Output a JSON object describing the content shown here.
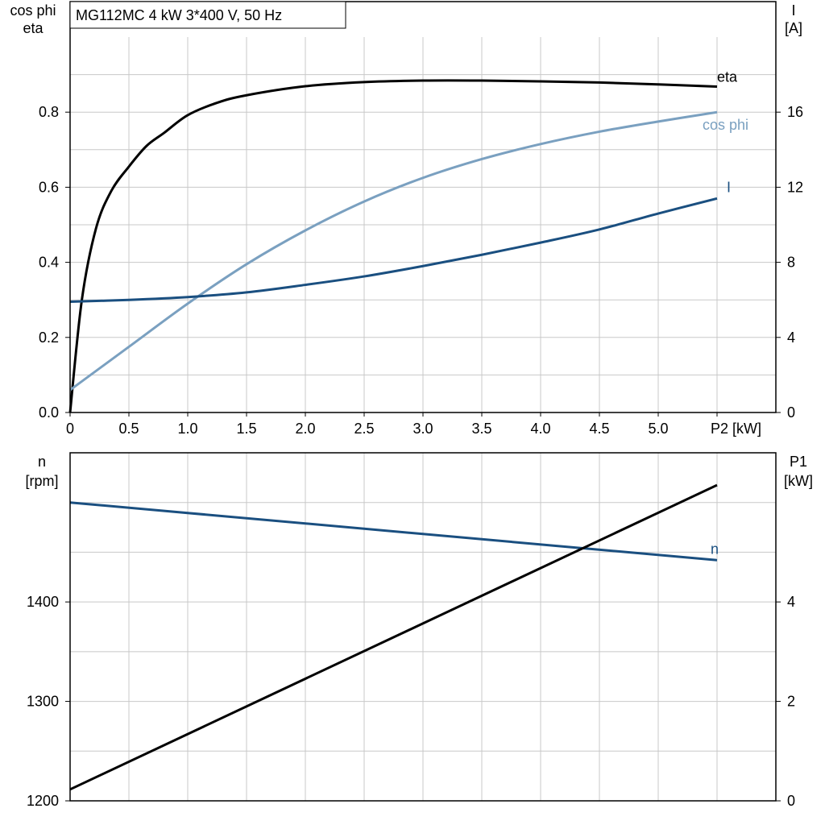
{
  "title_box": "MG112MC   4 kW   3*400 V, 50 Hz",
  "chart_data": [
    {
      "type": "line",
      "title": "MG112MC   4 kW   3*400 V, 50 Hz",
      "xlabel": "P2 [kW]",
      "xlim": [
        0,
        6
      ],
      "x_ticks": [
        "0",
        "0.5",
        "1.0",
        "1.5",
        "2.0",
        "2.5",
        "3.0",
        "3.5",
        "4.0",
        "4.5",
        "5.0",
        "P2 [kW]"
      ],
      "ylabel_left": [
        "cos phi",
        "eta"
      ],
      "ylim_left": [
        0,
        1.0
      ],
      "y_ticks_left": [
        "0.0",
        "0.2",
        "0.4",
        "0.6",
        "0.8"
      ],
      "ylabel_right": [
        "I",
        "[A]"
      ],
      "ylim_right": [
        0,
        20
      ],
      "y_ticks_right": [
        "0",
        "4",
        "8",
        "12",
        "16"
      ],
      "grid": true,
      "series": [
        {
          "name": "eta",
          "axis": "left",
          "color": "#000000",
          "x": [
            0,
            0.1,
            0.22,
            0.35,
            0.5,
            0.65,
            0.8,
            1.0,
            1.25,
            1.5,
            2.0,
            2.5,
            3.0,
            3.5,
            4.0,
            4.5,
            5.0,
            5.5
          ],
          "y": [
            0,
            0.3,
            0.49,
            0.59,
            0.655,
            0.71,
            0.745,
            0.792,
            0.825,
            0.845,
            0.869,
            0.88,
            0.884,
            0.884,
            0.882,
            0.879,
            0.874,
            0.868
          ]
        },
        {
          "name": "cos phi",
          "axis": "left",
          "color": "#7aa0c0",
          "x": [
            0,
            0.5,
            1.0,
            1.5,
            2.0,
            2.5,
            3.0,
            3.5,
            4.0,
            4.5,
            5.0,
            5.5
          ],
          "y": [
            0.06,
            0.175,
            0.29,
            0.395,
            0.485,
            0.562,
            0.625,
            0.675,
            0.715,
            0.748,
            0.775,
            0.8
          ]
        },
        {
          "name": "I",
          "axis": "right",
          "color": "#1a4f80",
          "x": [
            0,
            0.5,
            1.0,
            1.5,
            2.0,
            2.5,
            3.0,
            3.5,
            4.0,
            4.5,
            5.0,
            5.5
          ],
          "y": [
            5.9,
            6.0,
            6.15,
            6.4,
            6.8,
            7.25,
            7.8,
            8.4,
            9.05,
            9.75,
            10.6,
            11.4
          ]
        }
      ]
    },
    {
      "type": "line",
      "xlim": [
        0,
        6
      ],
      "ylabel_left": [
        "n",
        "[rpm]"
      ],
      "ylim_left": [
        1200,
        1550
      ],
      "y_ticks_left": [
        "1200",
        "1300",
        "1400"
      ],
      "ylabel_right": [
        "P1",
        "[kW]"
      ],
      "ylim_right": [
        0,
        7
      ],
      "y_ticks_right": [
        "0",
        "2",
        "4"
      ],
      "grid": true,
      "series": [
        {
          "name": "n",
          "axis": "left",
          "color": "#1a4f80",
          "x": [
            0,
            5.5
          ],
          "y": [
            1500,
            1442
          ]
        },
        {
          "name": "",
          "axis": "right",
          "color": "#000000",
          "x": [
            0,
            5.5
          ],
          "y": [
            0.23,
            6.35
          ]
        }
      ]
    }
  ]
}
